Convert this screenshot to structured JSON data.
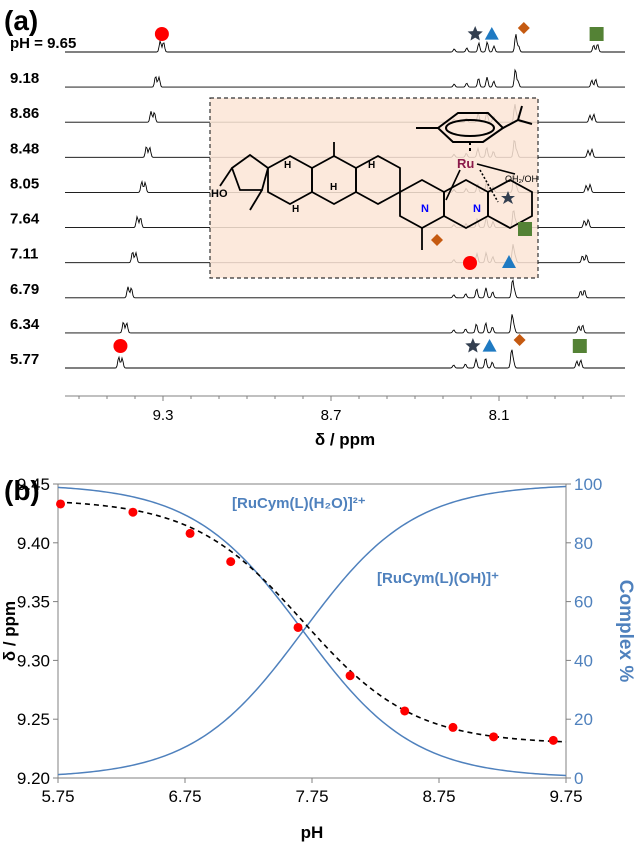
{
  "panel_a": {
    "label": "(a)",
    "ph_prefix": "pH  = ",
    "spectra": [
      {
        "ph": "9.65"
      },
      {
        "ph": "9.18"
      },
      {
        "ph": "8.86"
      },
      {
        "ph": "8.48"
      },
      {
        "ph": "8.05"
      },
      {
        "ph": "7.64"
      },
      {
        "ph": "7.11"
      },
      {
        "ph": "6.79"
      },
      {
        "ph": "6.34"
      },
      {
        "ph": "5.77"
      }
    ],
    "xaxis": {
      "label": "δ / ppm",
      "ticks": [
        "9.3",
        "8.7",
        "8.1"
      ],
      "tick_values": [
        9.3,
        8.7,
        8.1
      ],
      "range": [
        9.65,
        7.65
      ],
      "reversed": true
    },
    "inset": {
      "metal_label": "Ru",
      "ligand_label": "OH₂/OH",
      "n_label": "N",
      "ho_label": "HO",
      "h_label": "H"
    },
    "marker_legend": {
      "circle_color": "#ff0000",
      "star_color": "#333f50",
      "triangle_color": "#1f7ac2",
      "diamond_color": "#c55a11",
      "square_color": "#548235"
    },
    "inset_bg": "#fbe5d6"
  },
  "panel_b": {
    "label": "(b)",
    "chart_data": {
      "type": "scatter",
      "xlabel": "pH",
      "ylabel_left": "δ / ppm",
      "ylabel_right": "Complex %",
      "xlim": [
        5.75,
        9.75
      ],
      "ylim_left": [
        9.2,
        9.45
      ],
      "ylim_right": [
        0,
        100
      ],
      "x_ticks": [
        "5.75",
        "6.75",
        "7.75",
        "8.75",
        "9.75"
      ],
      "y_ticks_left": [
        "9.20",
        "9.25",
        "9.30",
        "9.35",
        "9.40",
        "9.45"
      ],
      "y_ticks_right": [
        "0",
        "20",
        "40",
        "60",
        "80",
        "100"
      ],
      "series": [
        {
          "type": "scatter",
          "color": "#ff0000",
          "x": [
            5.77,
            6.34,
            6.79,
            7.11,
            7.64,
            8.05,
            8.48,
            8.86,
            9.18,
            9.65
          ],
          "y": [
            9.433,
            9.426,
            9.408,
            9.384,
            9.328,
            9.287,
            9.257,
            9.243,
            9.235,
            9.232
          ]
        },
        {
          "type": "line",
          "style": "dashed",
          "color": "#000000",
          "pka": 7.68,
          "delta_acid": 9.437,
          "delta_base": 9.229
        },
        {
          "type": "line",
          "name": "[RuCym(L)(H₂O)]²⁺",
          "color": "#4f81bd",
          "pka": 7.68,
          "axis": "right"
        },
        {
          "type": "line",
          "name": "[RuCym(L)(OH)]⁺",
          "color": "#4f81bd",
          "pka": 7.68,
          "axis": "right"
        }
      ],
      "annotations": [
        "[RuCym(L)(H₂O)]²⁺",
        "[RuCym(L)(OH)]⁺"
      ]
    },
    "axis_color_right": "#4f81bd"
  }
}
